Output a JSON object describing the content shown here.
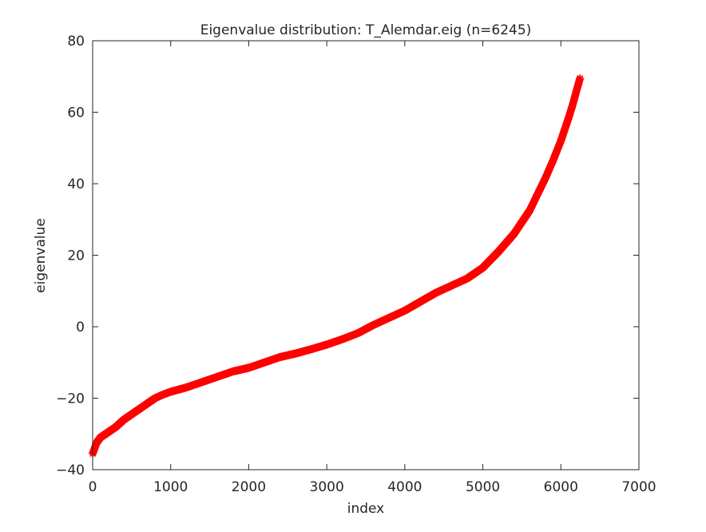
{
  "chart_data": {
    "type": "scatter",
    "title": "Eigenvalue distribution: T_Alemdar.eig (n=6245)",
    "xlabel": "index",
    "ylabel": "eigenvalue",
    "xlim": [
      0,
      7000
    ],
    "ylim": [
      -40,
      80
    ],
    "xticks": [
      0,
      1000,
      2000,
      3000,
      4000,
      5000,
      6000,
      7000
    ],
    "yticks": [
      -40,
      -20,
      0,
      20,
      40,
      60,
      80
    ],
    "xtick_labels": [
      "0",
      "1000",
      "2000",
      "3000",
      "4000",
      "5000",
      "6000",
      "7000"
    ],
    "ytick_labels": [
      "−40",
      "−20",
      "0",
      "20",
      "40",
      "60",
      "80"
    ],
    "grid": false,
    "marker": "*",
    "marker_color": "#ff0000",
    "n": 6245,
    "series": [
      {
        "x": [
          1,
          50,
          100,
          200,
          300,
          400,
          500,
          600,
          700,
          800,
          900,
          1000,
          1200,
          1400,
          1600,
          1800,
          2000,
          2200,
          2400,
          2600,
          2800,
          3000,
          3200,
          3400,
          3600,
          3800,
          4000,
          4200,
          4400,
          4600,
          4800,
          5000,
          5200,
          5400,
          5600,
          5700,
          5800,
          5900,
          6000,
          6100,
          6150,
          6200,
          6245
        ],
        "values": [
          -35.5,
          -32.5,
          -31,
          -29.5,
          -28,
          -26,
          -24.5,
          -23,
          -21.5,
          -20,
          -19,
          -18.2,
          -17,
          -15.5,
          -14,
          -12.5,
          -11.5,
          -10,
          -8.5,
          -7.5,
          -6.3,
          -5,
          -3.5,
          -1.8,
          0.5,
          2.5,
          4.5,
          7,
          9.5,
          11.5,
          13.5,
          16.5,
          21,
          26,
          32.5,
          37,
          41.5,
          46.5,
          52,
          58.5,
          62,
          66,
          69.5
        ]
      }
    ]
  }
}
